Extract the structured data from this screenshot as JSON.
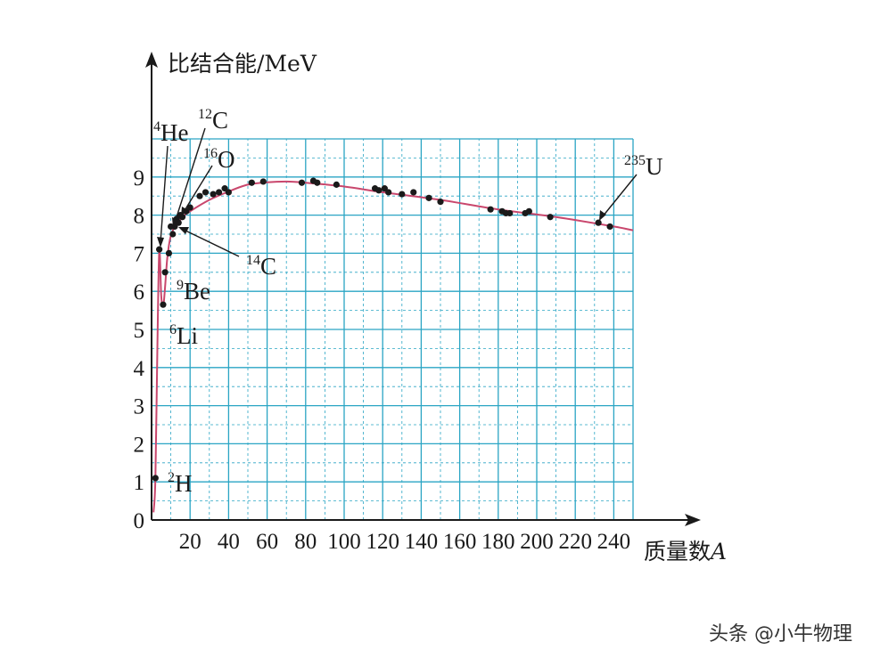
{
  "chart_data": {
    "type": "scatter",
    "ylabel": "比结合能/MeV",
    "xlabel_prefix": "质量数",
    "xlabel_var": "A",
    "x_ticks": [
      20,
      40,
      60,
      80,
      100,
      120,
      140,
      160,
      180,
      200,
      220,
      240
    ],
    "y_ticks": [
      0,
      1,
      2,
      3,
      4,
      5,
      6,
      7,
      8,
      9
    ],
    "xlim": [
      0,
      250
    ],
    "ylim": [
      0,
      10
    ],
    "grid": true,
    "points": [
      [
        2,
        1.1
      ],
      [
        4,
        7.1
      ],
      [
        6,
        5.65
      ],
      [
        7,
        6.5
      ],
      [
        9,
        7.0
      ],
      [
        10,
        7.7
      ],
      [
        11,
        7.5
      ],
      [
        12,
        7.7
      ],
      [
        13,
        7.9
      ],
      [
        14,
        7.8
      ],
      [
        15,
        8.0
      ],
      [
        16,
        7.95
      ],
      [
        18,
        8.1
      ],
      [
        20,
        8.2
      ],
      [
        25,
        8.5
      ],
      [
        28,
        8.6
      ],
      [
        32,
        8.55
      ],
      [
        35,
        8.6
      ],
      [
        38,
        8.7
      ],
      [
        40,
        8.6
      ],
      [
        52,
        8.85
      ],
      [
        58,
        8.88
      ],
      [
        78,
        8.85
      ],
      [
        84,
        8.9
      ],
      [
        86,
        8.85
      ],
      [
        96,
        8.8
      ],
      [
        116,
        8.7
      ],
      [
        118,
        8.65
      ],
      [
        121,
        8.7
      ],
      [
        123,
        8.6
      ],
      [
        130,
        8.55
      ],
      [
        136,
        8.6
      ],
      [
        144,
        8.45
      ],
      [
        150,
        8.35
      ],
      [
        176,
        8.15
      ],
      [
        182,
        8.1
      ],
      [
        184,
        8.05
      ],
      [
        186,
        8.05
      ],
      [
        194,
        8.05
      ],
      [
        196,
        8.1
      ],
      [
        207,
        7.95
      ],
      [
        232,
        7.8
      ],
      [
        238,
        7.7
      ]
    ],
    "curve": [
      [
        1,
        0.2
      ],
      [
        2,
        1.1
      ],
      [
        3,
        4.5
      ],
      [
        4,
        7.07
      ],
      [
        5,
        5.9
      ],
      [
        6,
        5.6
      ],
      [
        7,
        6.1
      ],
      [
        8,
        6.8
      ],
      [
        9,
        7.2
      ],
      [
        10,
        7.45
      ],
      [
        12,
        7.7
      ],
      [
        14,
        7.8
      ],
      [
        16,
        7.95
      ],
      [
        20,
        8.1
      ],
      [
        30,
        8.4
      ],
      [
        40,
        8.62
      ],
      [
        50,
        8.8
      ],
      [
        60,
        8.86
      ],
      [
        70,
        8.88
      ],
      [
        80,
        8.85
      ],
      [
        100,
        8.75
      ],
      [
        120,
        8.6
      ],
      [
        150,
        8.4
      ],
      [
        180,
        8.15
      ],
      [
        210,
        7.95
      ],
      [
        240,
        7.7
      ],
      [
        250,
        7.6
      ]
    ],
    "labels": [
      {
        "mass": "4",
        "symbol": "He"
      },
      {
        "mass": "12",
        "symbol": "C"
      },
      {
        "mass": "16",
        "symbol": "O"
      },
      {
        "mass": "14",
        "symbol": "C"
      },
      {
        "mass": "9",
        "symbol": "Be"
      },
      {
        "mass": "6",
        "symbol": "Li"
      },
      {
        "mass": "2",
        "symbol": "H"
      },
      {
        "mass": "235",
        "symbol": "U"
      }
    ],
    "colors": {
      "grid": "#2aa5c4",
      "curve": "#c9476d",
      "point": "#1a1a1a",
      "axis": "#1a1a1a"
    }
  },
  "watermark": "头条 @小牛物理"
}
